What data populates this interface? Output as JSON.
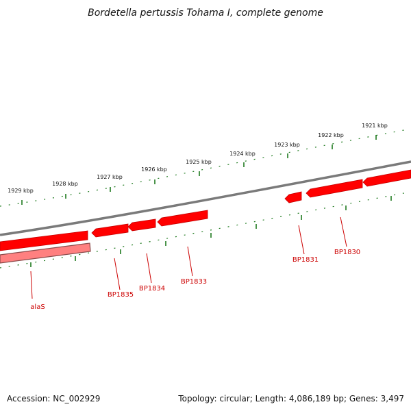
{
  "title": "Bordetella pertussis Tohama I, complete genome",
  "footer": {
    "accession": "Accession: NC_002929",
    "topology": "Topology: circular; Length: 4,086,189 bp; Genes: 3,497"
  },
  "colors": {
    "backbone": "#7a7a7a",
    "gene_forward": "#ff0000",
    "gene_reverse": "#ff7070",
    "tick": "#1e7a1e",
    "label_line": "#cc0000",
    "label_text": "#cc0000"
  },
  "kbp_scale_labels": [
    "1929 kbp",
    "1928 kbp",
    "1927 kbp",
    "1926 kbp",
    "1925 kbp",
    "1924 kbp",
    "1923 kbp",
    "1922 kbp",
    "1921 kbp"
  ],
  "gene_labels": [
    "alaS",
    "BP1835",
    "BP1834",
    "BP1833",
    "BP1831",
    "BP1830"
  ]
}
